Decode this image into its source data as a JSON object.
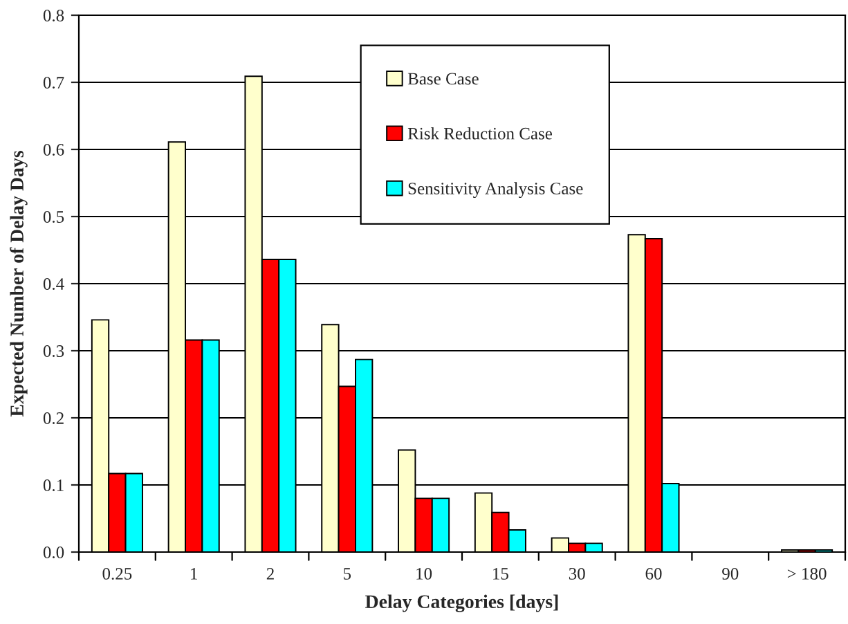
{
  "chart_data": {
    "type": "bar",
    "xlabel": "Delay Categories [days]",
    "ylabel": "Expected Number of Delay Days",
    "categories": [
      "0.25",
      "1",
      "2",
      "5",
      "10",
      "15",
      "30",
      "60",
      "90",
      "> 180"
    ],
    "series": [
      {
        "name": "Base Case",
        "color": "#ffffcc",
        "values": [
          0.346,
          0.611,
          0.709,
          0.339,
          0.152,
          0.088,
          0.021,
          0.473,
          null,
          0.003
        ]
      },
      {
        "name": "Risk Reduction Case",
        "color": "#ff0000",
        "values": [
          0.117,
          0.316,
          0.436,
          0.247,
          0.08,
          0.059,
          0.013,
          0.467,
          null,
          0.003
        ]
      },
      {
        "name": "Sensitivity Analysis Case",
        "color": "#00ffff",
        "values": [
          0.117,
          0.316,
          0.436,
          0.287,
          0.08,
          0.033,
          0.013,
          0.102,
          null,
          0.003
        ]
      }
    ],
    "ylim": [
      0,
      0.8
    ],
    "yticks": [
      {
        "value": 0,
        "label": "0.0"
      },
      0.1,
      0.2,
      0.3,
      0.4,
      0.5,
      0.6,
      0.7,
      0.8
    ],
    "grid": "y",
    "legend": "top"
  }
}
